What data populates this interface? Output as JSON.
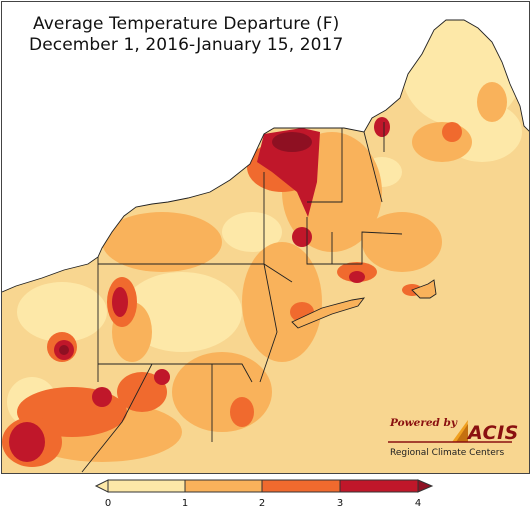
{
  "title": {
    "line1": "Average Temperature Departure (F)",
    "line2": "December 1, 2016-January 15, 2017"
  },
  "logo": {
    "powered_by": "Powered by",
    "name": "ACIS",
    "subtitle": "Regional Climate Centers"
  },
  "legend": {
    "ticks": [
      "0",
      "1",
      "2",
      "3",
      "4"
    ],
    "colors": [
      "#fde8a8",
      "#f9b25b",
      "#f06a2e",
      "#c0172a"
    ]
  },
  "colors": {
    "lake": "#ffffff",
    "land_base": "#f8d690",
    "pale": "#fde8a8",
    "light": "#f9b25b",
    "medium": "#f06a2e",
    "dark": "#c0172a",
    "darkest": "#8e1022",
    "logo_red": "#8a1010"
  }
}
